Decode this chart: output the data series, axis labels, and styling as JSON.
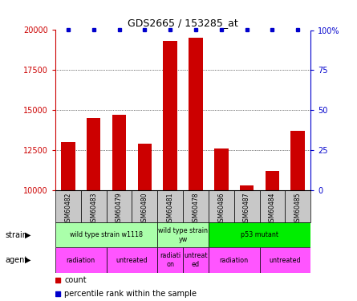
{
  "title": "GDS2665 / 153285_at",
  "samples": [
    "GSM60482",
    "GSM60483",
    "GSM60479",
    "GSM60480",
    "GSM60481",
    "GSM60478",
    "GSM60486",
    "GSM60487",
    "GSM60484",
    "GSM60485"
  ],
  "counts": [
    13000,
    14500,
    14700,
    12900,
    19300,
    19500,
    12600,
    10300,
    11200,
    13700
  ],
  "percentiles": [
    100,
    100,
    100,
    100,
    100,
    100,
    100,
    100,
    100,
    100
  ],
  "ylim_left": [
    10000,
    20000
  ],
  "ylim_right": [
    0,
    100
  ],
  "yticks_left": [
    10000,
    12500,
    15000,
    17500,
    20000
  ],
  "yticks_right": [
    0,
    25,
    50,
    75,
    100
  ],
  "strain_groups": [
    {
      "label": "wild type strain w1118",
      "start": 0,
      "end": 4,
      "color": "#AAFFAA"
    },
    {
      "label": "wild type strain\nyw",
      "start": 4,
      "end": 6,
      "color": "#AAFFAA"
    },
    {
      "label": "p53 mutant",
      "start": 6,
      "end": 10,
      "color": "#00EE00"
    }
  ],
  "agent_groups": [
    {
      "label": "radiation",
      "start": 0,
      "end": 2
    },
    {
      "label": "untreated",
      "start": 2,
      "end": 4
    },
    {
      "label": "radiati-\non",
      "start": 4,
      "end": 5
    },
    {
      "label": "untreat-\ned",
      "start": 5,
      "end": 6
    },
    {
      "label": "radiation",
      "start": 6,
      "end": 8
    },
    {
      "label": "untreated",
      "start": 8,
      "end": 10
    }
  ],
  "agent_color": "#FF55FF",
  "bar_color": "#CC0000",
  "dot_color": "#0000CC",
  "title_color": "#000000",
  "left_tick_color": "#CC0000",
  "right_tick_color": "#0000CC",
  "bg_color": "#FFFFFF",
  "sample_bg_color": "#C8C8C8",
  "grid_yticks": [
    12500,
    15000,
    17500
  ]
}
